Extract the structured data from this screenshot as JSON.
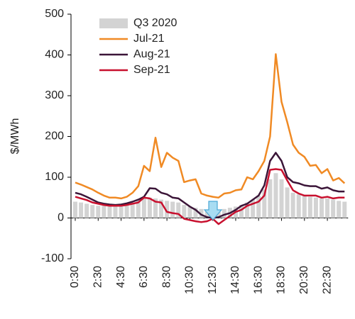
{
  "chart_data": {
    "type": "bar-line",
    "y_label": "$/MWh",
    "categories": [
      "0:30",
      null,
      null,
      null,
      "2:30",
      null,
      null,
      null,
      "4:30",
      null,
      null,
      null,
      "6:30",
      null,
      null,
      null,
      "8:30",
      null,
      null,
      null,
      "10:30",
      null,
      null,
      null,
      "12:30",
      null,
      null,
      null,
      "14:30",
      null,
      null,
      null,
      "16:30",
      null,
      null,
      null,
      "18:30",
      null,
      null,
      null,
      "20:30",
      null,
      null,
      null,
      "22:30",
      null,
      null,
      null
    ],
    "ylim": [
      -100,
      500
    ],
    "yticks": [
      -100,
      0,
      100,
      200,
      300,
      400,
      500
    ],
    "series": [
      {
        "name": "Q3 2020",
        "type": "bar",
        "color": "#d3d3d3",
        "values": [
          40,
          38,
          35,
          32,
          30,
          30,
          28,
          28,
          28,
          30,
          35,
          45,
          50,
          50,
          48,
          45,
          42,
          40,
          38,
          32,
          28,
          25,
          22,
          20,
          20,
          20,
          22,
          25,
          28,
          32,
          38,
          45,
          55,
          70,
          95,
          110,
          95,
          75,
          62,
          58,
          55,
          52,
          50,
          48,
          48,
          45,
          42,
          40
        ]
      },
      {
        "name": "Jul-21",
        "type": "line",
        "color": "#f08a24",
        "values": [
          87,
          82,
          76,
          70,
          62,
          55,
          50,
          50,
          48,
          52,
          62,
          78,
          128,
          115,
          197,
          125,
          160,
          148,
          140,
          88,
          92,
          95,
          60,
          55,
          52,
          50,
          60,
          62,
          68,
          70,
          100,
          95,
          115,
          140,
          200,
          402,
          285,
          235,
          180,
          160,
          150,
          128,
          130,
          110,
          120,
          92,
          98,
          85
        ]
      },
      {
        "name": "Aug-21",
        "type": "line",
        "color": "#3b1538",
        "values": [
          62,
          58,
          52,
          45,
          38,
          35,
          33,
          32,
          33,
          36,
          40,
          45,
          52,
          73,
          72,
          62,
          58,
          50,
          48,
          38,
          28,
          20,
          8,
          2,
          0,
          2,
          8,
          12,
          20,
          30,
          35,
          45,
          55,
          80,
          140,
          160,
          140,
          100,
          88,
          85,
          80,
          78,
          78,
          72,
          75,
          68,
          65,
          65
        ]
      },
      {
        "name": "Sep-21",
        "type": "line",
        "color": "#c8102e",
        "values": [
          52,
          48,
          44,
          38,
          35,
          32,
          30,
          30,
          30,
          32,
          35,
          38,
          50,
          48,
          40,
          38,
          15,
          12,
          10,
          -2,
          -5,
          -8,
          -10,
          -8,
          -2,
          -15,
          -5,
          5,
          15,
          20,
          30,
          35,
          40,
          55,
          118,
          120,
          118,
          92,
          68,
          60,
          55,
          55,
          55,
          50,
          52,
          48,
          50,
          50
        ]
      }
    ]
  }
}
